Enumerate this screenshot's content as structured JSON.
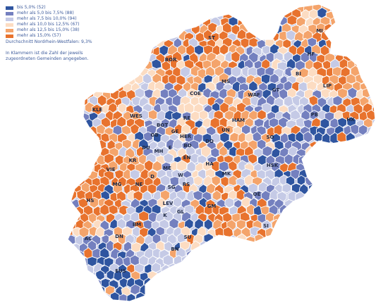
{
  "legend": {
    "items": [
      {
        "label": "bis 5,0% (52)",
        "color": "#2F55A0"
      },
      {
        "label": "mehr als 5,0 bis 7,5% (88)",
        "color": "#7480BF"
      },
      {
        "label": "mehr als 7,5 bis 10,0% (94)",
        "color": "#C5CAE6"
      },
      {
        "label": "mehr als 10,0 bis 12,5% (67)",
        "color": "#FCDCC2"
      },
      {
        "label": "mehr als 12,5 bis 15,0% (38)",
        "color": "#F4A46B"
      },
      {
        "label": "mehr als 15,0% (57)",
        "color": "#E8732E"
      }
    ],
    "average": "Durchschnitt Nordrhein-Westfalen: 9,3%",
    "note_line1": "In Klammern ist die Zahl der jeweils",
    "note_line2": "zugeordneten Gemeinden angegeben."
  },
  "map": {
    "region": "Nordrhein-Westfalen",
    "border_color": "#ffffff",
    "labels": [
      "MI",
      "ST",
      "BOR",
      "HF",
      "BI",
      "LIP",
      "MS",
      "WAF",
      "GT",
      "COE",
      "KLE",
      "WES",
      "RE",
      "HAM",
      "PB",
      "HX",
      "BOT",
      "GE",
      "HER",
      "DO",
      "UN",
      "SO",
      "OB",
      "DU",
      "MH",
      "E",
      "BO",
      "KR",
      "EN",
      "HA",
      "HSK",
      "VIE",
      "D",
      "ME",
      "W",
      "MK",
      "MG",
      "NE",
      "SG",
      "RS",
      "OE",
      "HS",
      "LEV",
      "GM",
      "K",
      "GL",
      "SI",
      "BM",
      "AC",
      "DN",
      "SU",
      "BN",
      "EUS"
    ]
  }
}
